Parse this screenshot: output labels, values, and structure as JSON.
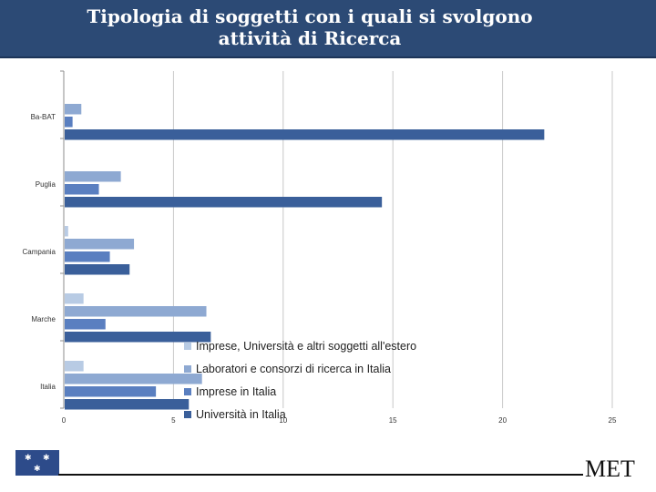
{
  "page": {
    "title_line1": "Tipologia di soggetti con i quali si svolgono",
    "title_line2": "attività di Ricerca",
    "brand": "MET"
  },
  "chart_data": {
    "type": "bar",
    "orientation": "horizontal",
    "title": "Tipologia di soggetti con i quali si svolgono attività di Ricerca",
    "categories": [
      "Ba-BAT",
      "Puglia",
      "Campania",
      "Marche",
      "Italia"
    ],
    "series": [
      {
        "name": "Imprese, Università e altri soggetti all'estero",
        "color": "#b8cbe4",
        "values": [
          0,
          0,
          0.2,
          0.9,
          0.9
        ]
      },
      {
        "name": "Laboratori e consorzi di ricerca in Italia",
        "color": "#8ea9d2",
        "values": [
          0.8,
          2.6,
          3.2,
          6.5,
          6.3
        ]
      },
      {
        "name": "Imprese in Italia",
        "color": "#5a7fc0",
        "values": [
          0.4,
          1.6,
          2.1,
          1.9,
          4.2
        ]
      },
      {
        "name": "Università in Italia",
        "color": "#3a5f9a",
        "values": [
          21.9,
          14.5,
          3.0,
          6.7,
          5.7
        ]
      }
    ],
    "xlim": [
      0,
      25
    ],
    "xticks": [
      0,
      5,
      10,
      15,
      20,
      25
    ],
    "xlabel": "",
    "ylabel": "",
    "grid": "vertical",
    "legend_position": "bottom-center-overlay"
  },
  "colors": {
    "header": "#2c4a75",
    "grid": "#c8c8c8"
  }
}
